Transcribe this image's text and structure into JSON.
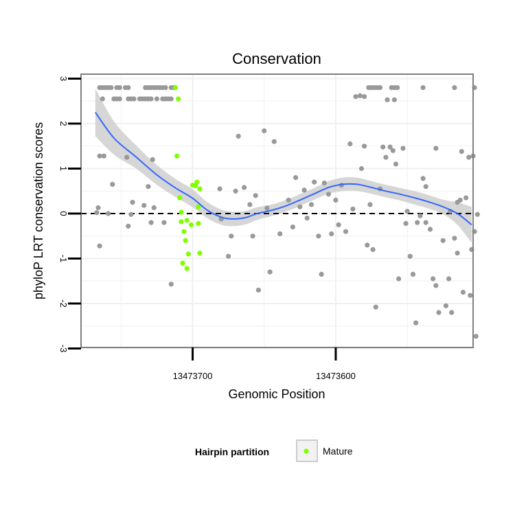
{
  "chart_data": {
    "type": "scatter",
    "title": "Conservation",
    "xlabel": "Genomic Position",
    "ylabel": "phyloP LRT conservation scores",
    "x_reversed": true,
    "xlim": [
      13473778,
      13473504
    ],
    "ylim": [
      -3,
      3
    ],
    "x_ticks": [
      13473700,
      13473600
    ],
    "x_tick_labels": [
      "13473700",
      "13473600"
    ],
    "y_ticks": [
      -3,
      -2,
      -1,
      0,
      1,
      2,
      3
    ],
    "y_tick_labels": [
      "-3",
      "-2",
      "-1",
      "0",
      "1",
      "2",
      "3"
    ],
    "grid": true,
    "reference_line": {
      "y": 0,
      "style": "dashed"
    },
    "legend": {
      "title": "Hairpin partition",
      "position": "bottom",
      "entries": [
        "Mature"
      ]
    },
    "colors": {
      "points": "#999999",
      "mature": "#80ff00",
      "smooth": "#3366ff",
      "ribbon": "#cccccc",
      "panel_border": "#7f7f7f",
      "grid": "#f0f0f0"
    },
    "series": [
      {
        "name": "",
        "color": "#999999",
        "points": [
          [
            13473765,
            2.8
          ],
          [
            13473763,
            2.8
          ],
          [
            13473761,
            2.8
          ],
          [
            13473759,
            2.8
          ],
          [
            13473757,
            2.8
          ],
          [
            13473753,
            2.8
          ],
          [
            13473751,
            2.8
          ],
          [
            13473747,
            2.8
          ],
          [
            13473745,
            2.8
          ],
          [
            13473733,
            2.8
          ],
          [
            13473731,
            2.8
          ],
          [
            13473729,
            2.8
          ],
          [
            13473727,
            2.8
          ],
          [
            13473725,
            2.8
          ],
          [
            13473723,
            2.8
          ],
          [
            13473721,
            2.8
          ],
          [
            13473719,
            2.8
          ],
          [
            13473715,
            2.8
          ],
          [
            13473713,
            2.8
          ],
          [
            13473763,
            2.55
          ],
          [
            13473755,
            2.55
          ],
          [
            13473753,
            2.55
          ],
          [
            13473751,
            2.55
          ],
          [
            13473745,
            2.55
          ],
          [
            13473743,
            2.55
          ],
          [
            13473741,
            2.55
          ],
          [
            13473737,
            2.55
          ],
          [
            13473735,
            2.55
          ],
          [
            13473733,
            2.55
          ],
          [
            13473731,
            2.55
          ],
          [
            13473729,
            2.55
          ],
          [
            13473725,
            2.55
          ],
          [
            13473721,
            2.55
          ],
          [
            13473719,
            2.55
          ],
          [
            13473717,
            2.55
          ],
          [
            13473715,
            2.55
          ],
          [
            13473765,
            1.28
          ],
          [
            13473762,
            1.28
          ],
          [
            13473746,
            1.25
          ],
          [
            13473728,
            1.2
          ],
          [
            13473756,
            0.65
          ],
          [
            13473731,
            0.6
          ],
          [
            13473742,
            0.25
          ],
          [
            13473727,
            0.13
          ],
          [
            13473766,
            0.13
          ],
          [
            13473767,
            0.02
          ],
          [
            13473759,
            0.0
          ],
          [
            13473734,
            0.18
          ],
          [
            13473743,
            -0.02
          ],
          [
            13473720,
            -0.2
          ],
          [
            13473729,
            -0.2
          ],
          [
            13473745,
            -0.28
          ],
          [
            13473765,
            -0.72
          ],
          [
            13473715,
            -1.57
          ],
          [
            13473681,
            0.55
          ],
          [
            13473680,
            -0.12
          ],
          [
            13473675,
            -0.95
          ],
          [
            13473673,
            -0.5
          ],
          [
            13473670,
            0.5
          ],
          [
            13473668,
            1.72
          ],
          [
            13473664,
            0.58
          ],
          [
            13473660,
            0.2
          ],
          [
            13473656,
            0.4
          ],
          [
            13473658,
            -0.5
          ],
          [
            13473654,
            -1.7
          ],
          [
            13473650,
            1.84
          ],
          [
            13473648,
            0.12
          ],
          [
            13473646,
            -1.3
          ],
          [
            13473643,
            1.6
          ],
          [
            13473639,
            -0.45
          ],
          [
            13473633,
            0.3
          ],
          [
            13473630,
            -0.3
          ],
          [
            13473628,
            0.8
          ],
          [
            13473625,
            0.15
          ],
          [
            13473622,
            0.52
          ],
          [
            13473620,
            -0.1
          ],
          [
            13473617,
            0.2
          ],
          [
            13473615,
            0.7
          ],
          [
            13473612,
            -0.5
          ],
          [
            13473610,
            -1.35
          ],
          [
            13473608,
            0.68
          ],
          [
            13473605,
            0.43
          ],
          [
            13473603,
            -0.45
          ],
          [
            13473600,
            0.3
          ],
          [
            13473598,
            -0.25
          ],
          [
            13473596,
            0.63
          ],
          [
            13473593,
            -0.4
          ],
          [
            13473590,
            1.55
          ],
          [
            13473588,
            0.1
          ],
          [
            13473586,
            2.6
          ],
          [
            13473577,
            2.8
          ],
          [
            13473575,
            2.8
          ],
          [
            13473573,
            2.8
          ],
          [
            13473571,
            2.8
          ],
          [
            13473569,
            2.8
          ],
          [
            13473561,
            2.8
          ],
          [
            13473559,
            2.8
          ],
          [
            13473557,
            2.8
          ],
          [
            13473539,
            2.8
          ],
          [
            13473517,
            2.8
          ],
          [
            13473503,
            2.8
          ],
          [
            13473583,
            2.62
          ],
          [
            13473580,
            2.6
          ],
          [
            13473564,
            2.53
          ],
          [
            13473559,
            2.53
          ],
          [
            13473582,
            1.0
          ],
          [
            13473580,
            1.5
          ],
          [
            13473578,
            -0.7
          ],
          [
            13473576,
            0.2
          ],
          [
            13473574,
            -0.8
          ],
          [
            13473572,
            -2.08
          ],
          [
            13473569,
            0.55
          ],
          [
            13473567,
            1.48
          ],
          [
            13473565,
            1.25
          ],
          [
            13473562,
            1.48
          ],
          [
            13473560,
            1.4
          ],
          [
            13473558,
            1.1
          ],
          [
            13473556,
            -1.45
          ],
          [
            13473553,
            1.45
          ],
          [
            13473551,
            -0.22
          ],
          [
            13473548,
            -0.95
          ],
          [
            13473546,
            -1.35
          ],
          [
            13473543,
            -0.2
          ],
          [
            13473541,
            -0.05
          ],
          [
            13473539,
            0.78
          ],
          [
            13473537,
            -0.2
          ],
          [
            13473534,
            -0.35
          ],
          [
            13473532,
            -1.45
          ],
          [
            13473530,
            -1.6
          ],
          [
            13473528,
            -2.2
          ],
          [
            13473525,
            -0.6
          ],
          [
            13473523,
            -2.05
          ],
          [
            13473521,
            -1.45
          ],
          [
            13473519,
            -2.2
          ],
          [
            13473517,
            -0.55
          ],
          [
            13473515,
            -0.88
          ],
          [
            13473513,
            0.3
          ],
          [
            13473511,
            -1.75
          ],
          [
            13473509,
            0.35
          ],
          [
            13473507,
            1.25
          ],
          [
            13473505,
            -0.8
          ],
          [
            13473503,
            -0.4
          ],
          [
            13473501,
            -0.02
          ],
          [
            13473544,
            -2.43
          ],
          [
            13473537,
            0.6
          ],
          [
            13473530,
            1.45
          ],
          [
            13473520,
            0.05
          ],
          [
            13473515,
            0.25
          ],
          [
            13473506,
            -1.82
          ],
          [
            13473502,
            -2.73
          ],
          [
            13473550,
            0.05
          ],
          [
            13473512,
            1.38
          ],
          [
            13473504,
            1.28
          ]
        ]
      },
      {
        "name": "Mature",
        "color": "#80ff00",
        "points": [
          [
            13473712,
            2.8
          ],
          [
            13473710,
            2.55
          ],
          [
            13473711,
            1.28
          ],
          [
            13473709,
            0.35
          ],
          [
            13473708,
            0.03
          ],
          [
            13473708,
            -0.18
          ],
          [
            13473706,
            -0.4
          ],
          [
            13473705,
            -0.6
          ],
          [
            13473704,
            -0.15
          ],
          [
            13473707,
            -1.1
          ],
          [
            13473703,
            -0.9
          ],
          [
            13473704,
            -1.22
          ],
          [
            13473701,
            -0.25
          ],
          [
            13473700,
            0.63
          ],
          [
            13473698,
            0.62
          ],
          [
            13473697,
            0.7
          ],
          [
            13473696,
            -0.22
          ],
          [
            13473696,
            0.15
          ],
          [
            13473695,
            0.55
          ],
          [
            13473695,
            -0.88
          ]
        ]
      }
    ],
    "smooth": {
      "method": "loess",
      "color": "#3366ff",
      "x": [
        13473768,
        13473755,
        13473740,
        13473725,
        13473712,
        13473700,
        13473690,
        13473680,
        13473672,
        13473663,
        13473655,
        13473645,
        13473635,
        13473625,
        13473615,
        13473605,
        13473595,
        13473585,
        13473575,
        13473565,
        13473555,
        13473545,
        13473535,
        13473525,
        13473515,
        13473505
      ],
      "y": [
        2.25,
        1.68,
        1.27,
        0.86,
        0.57,
        0.34,
        0.08,
        -0.08,
        -0.12,
        -0.09,
        0.0,
        0.07,
        0.17,
        0.3,
        0.44,
        0.58,
        0.65,
        0.65,
        0.58,
        0.5,
        0.43,
        0.35,
        0.26,
        0.15,
        0.0,
        -0.25
      ],
      "se": [
        0.53,
        0.37,
        0.26,
        0.22,
        0.2,
        0.2,
        0.18,
        0.17,
        0.16,
        0.15,
        0.14,
        0.13,
        0.13,
        0.13,
        0.13,
        0.14,
        0.15,
        0.15,
        0.14,
        0.14,
        0.14,
        0.15,
        0.15,
        0.16,
        0.25,
        0.4
      ]
    }
  }
}
